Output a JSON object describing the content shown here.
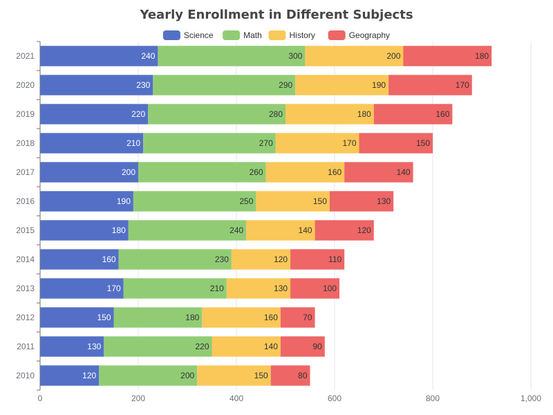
{
  "chart_data": {
    "type": "bar",
    "orientation": "horizontal",
    "stacked": true,
    "title": "Yearly Enrollment in Different Subjects",
    "categories": [
      "2010",
      "2011",
      "2012",
      "2013",
      "2014",
      "2015",
      "2016",
      "2017",
      "2018",
      "2019",
      "2020",
      "2021"
    ],
    "series": [
      {
        "name": "Science",
        "color": "#5470c6",
        "label_color": "#ffffff",
        "values": [
          120,
          130,
          150,
          170,
          160,
          180,
          190,
          200,
          210,
          220,
          230,
          240
        ]
      },
      {
        "name": "Math",
        "color": "#91cc75",
        "label_color": "#333333",
        "values": [
          200,
          220,
          180,
          210,
          230,
          240,
          250,
          260,
          270,
          280,
          290,
          300
        ]
      },
      {
        "name": "History",
        "color": "#fac858",
        "label_color": "#333333",
        "values": [
          150,
          140,
          160,
          130,
          120,
          140,
          150,
          160,
          170,
          180,
          190,
          200
        ]
      },
      {
        "name": "Geography",
        "color": "#ee6666",
        "label_color": "#333333",
        "values": [
          80,
          90,
          70,
          100,
          110,
          120,
          130,
          140,
          150,
          160,
          170,
          180
        ]
      }
    ],
    "xlim": [
      0,
      1000
    ],
    "xticks": [
      0,
      200,
      400,
      600,
      800,
      1000
    ],
    "xtick_labels": [
      "0",
      "200",
      "400",
      "600",
      "800",
      "1,000"
    ],
    "xlabel": "",
    "ylabel": "",
    "grid": true,
    "legend_position": "top-center",
    "data_labels": "inside-end"
  }
}
